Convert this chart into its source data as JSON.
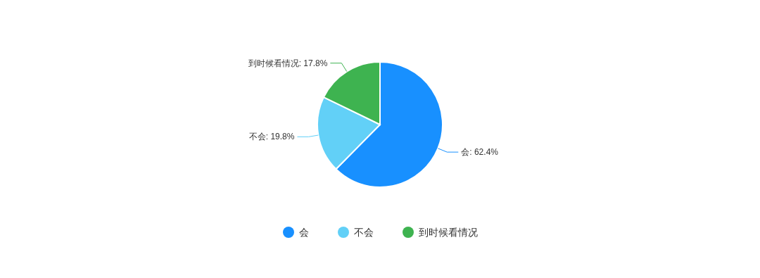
{
  "chart_data": {
    "type": "pie",
    "categories": [
      "会",
      "不会",
      "到时候看情况"
    ],
    "values": [
      62.4,
      19.8,
      17.8
    ],
    "colors": [
      "#1890ff",
      "#62d0f7",
      "#3eb350"
    ],
    "value_labels": [
      "会: 62.4%",
      "不会: 19.8%",
      "到时候看情况: 17.8%"
    ],
    "legend": "bottom"
  }
}
